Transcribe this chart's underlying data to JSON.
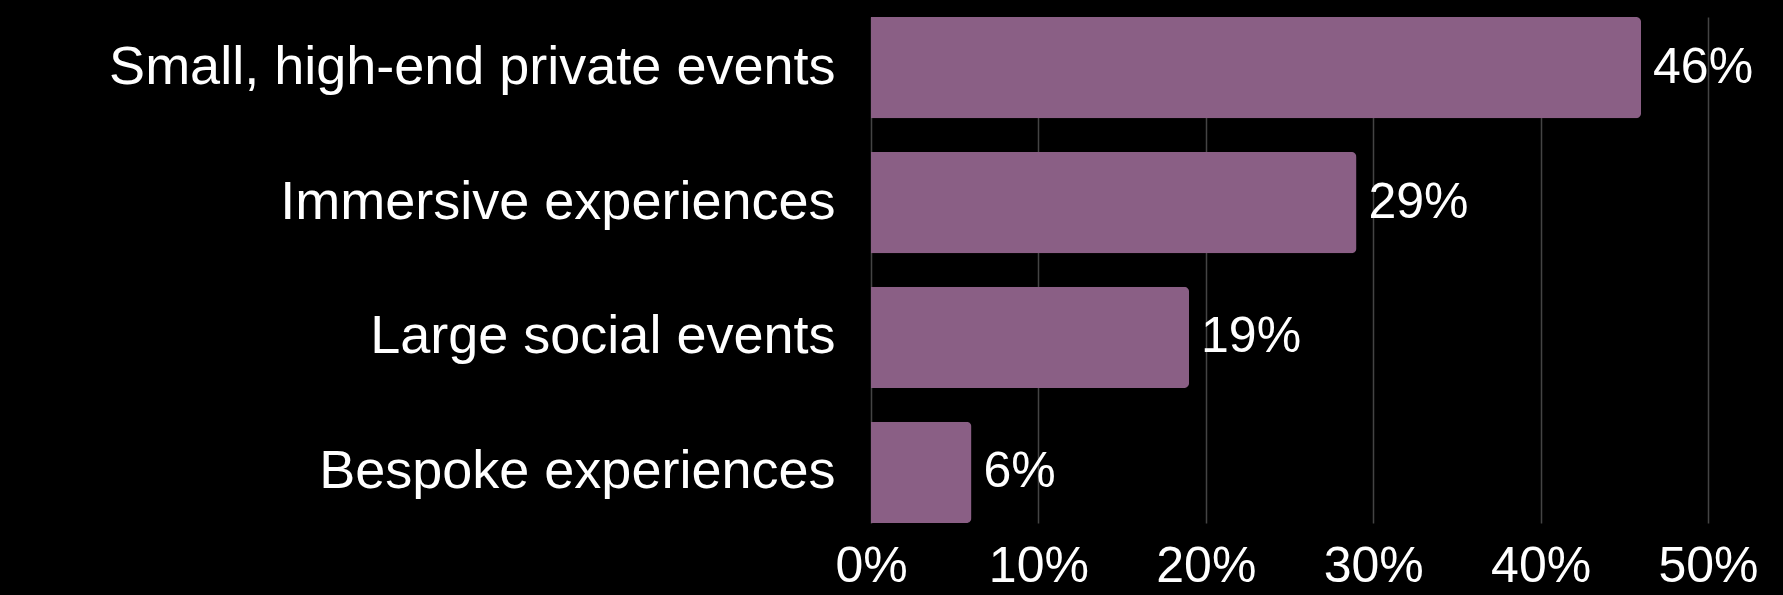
{
  "chart_data": {
    "type": "bar",
    "orientation": "horizontal",
    "categories": [
      "Small, high-end private events",
      "Immersive experiences",
      "Large social events",
      "Bespoke experiences"
    ],
    "values": [
      46,
      29,
      19,
      6
    ],
    "value_labels": [
      "46%",
      "29%",
      "19%",
      "6%"
    ],
    "color": "#8a5f85",
    "xlim": [
      0,
      50
    ],
    "xticks": [
      {
        "value": 0,
        "label": "0%"
      },
      {
        "value": 10,
        "label": "10%"
      },
      {
        "value": 20,
        "label": "20%"
      },
      {
        "value": 30,
        "label": "30%"
      },
      {
        "value": 40,
        "label": "40%"
      },
      {
        "value": 50,
        "label": "50%"
      }
    ],
    "grid": "x"
  }
}
